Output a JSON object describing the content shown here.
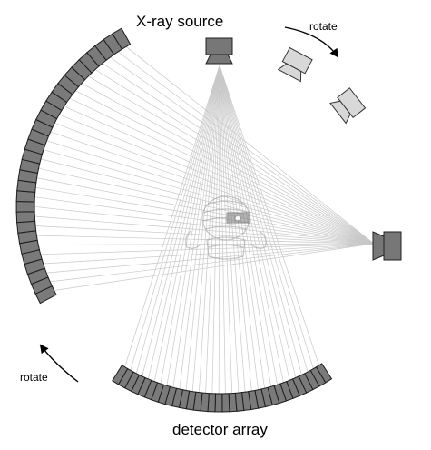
{
  "labels": {
    "source": "X-ray source",
    "detector": "detector array",
    "rotate_top": "rotate",
    "rotate_bottom": "rotate"
  },
  "icons": {
    "source_current": "xray-source-icon",
    "source_ghost_1": "xray-source-ghost-icon",
    "source_ghost_2": "xray-source-ghost-icon",
    "source_right": "xray-source-rotated-icon",
    "object": "mummy-figure-icon",
    "rotate_arrow_top": "curved-arrow-icon",
    "rotate_arrow_bottom": "curved-arrow-icon"
  },
  "colors": {
    "detector_fill": "#7a7a7a",
    "detector_stroke": "#1e1e1e",
    "beam_line": "#c8c8c8",
    "ghost_fill": "#d8d8d8",
    "source_fill": "#777777"
  }
}
